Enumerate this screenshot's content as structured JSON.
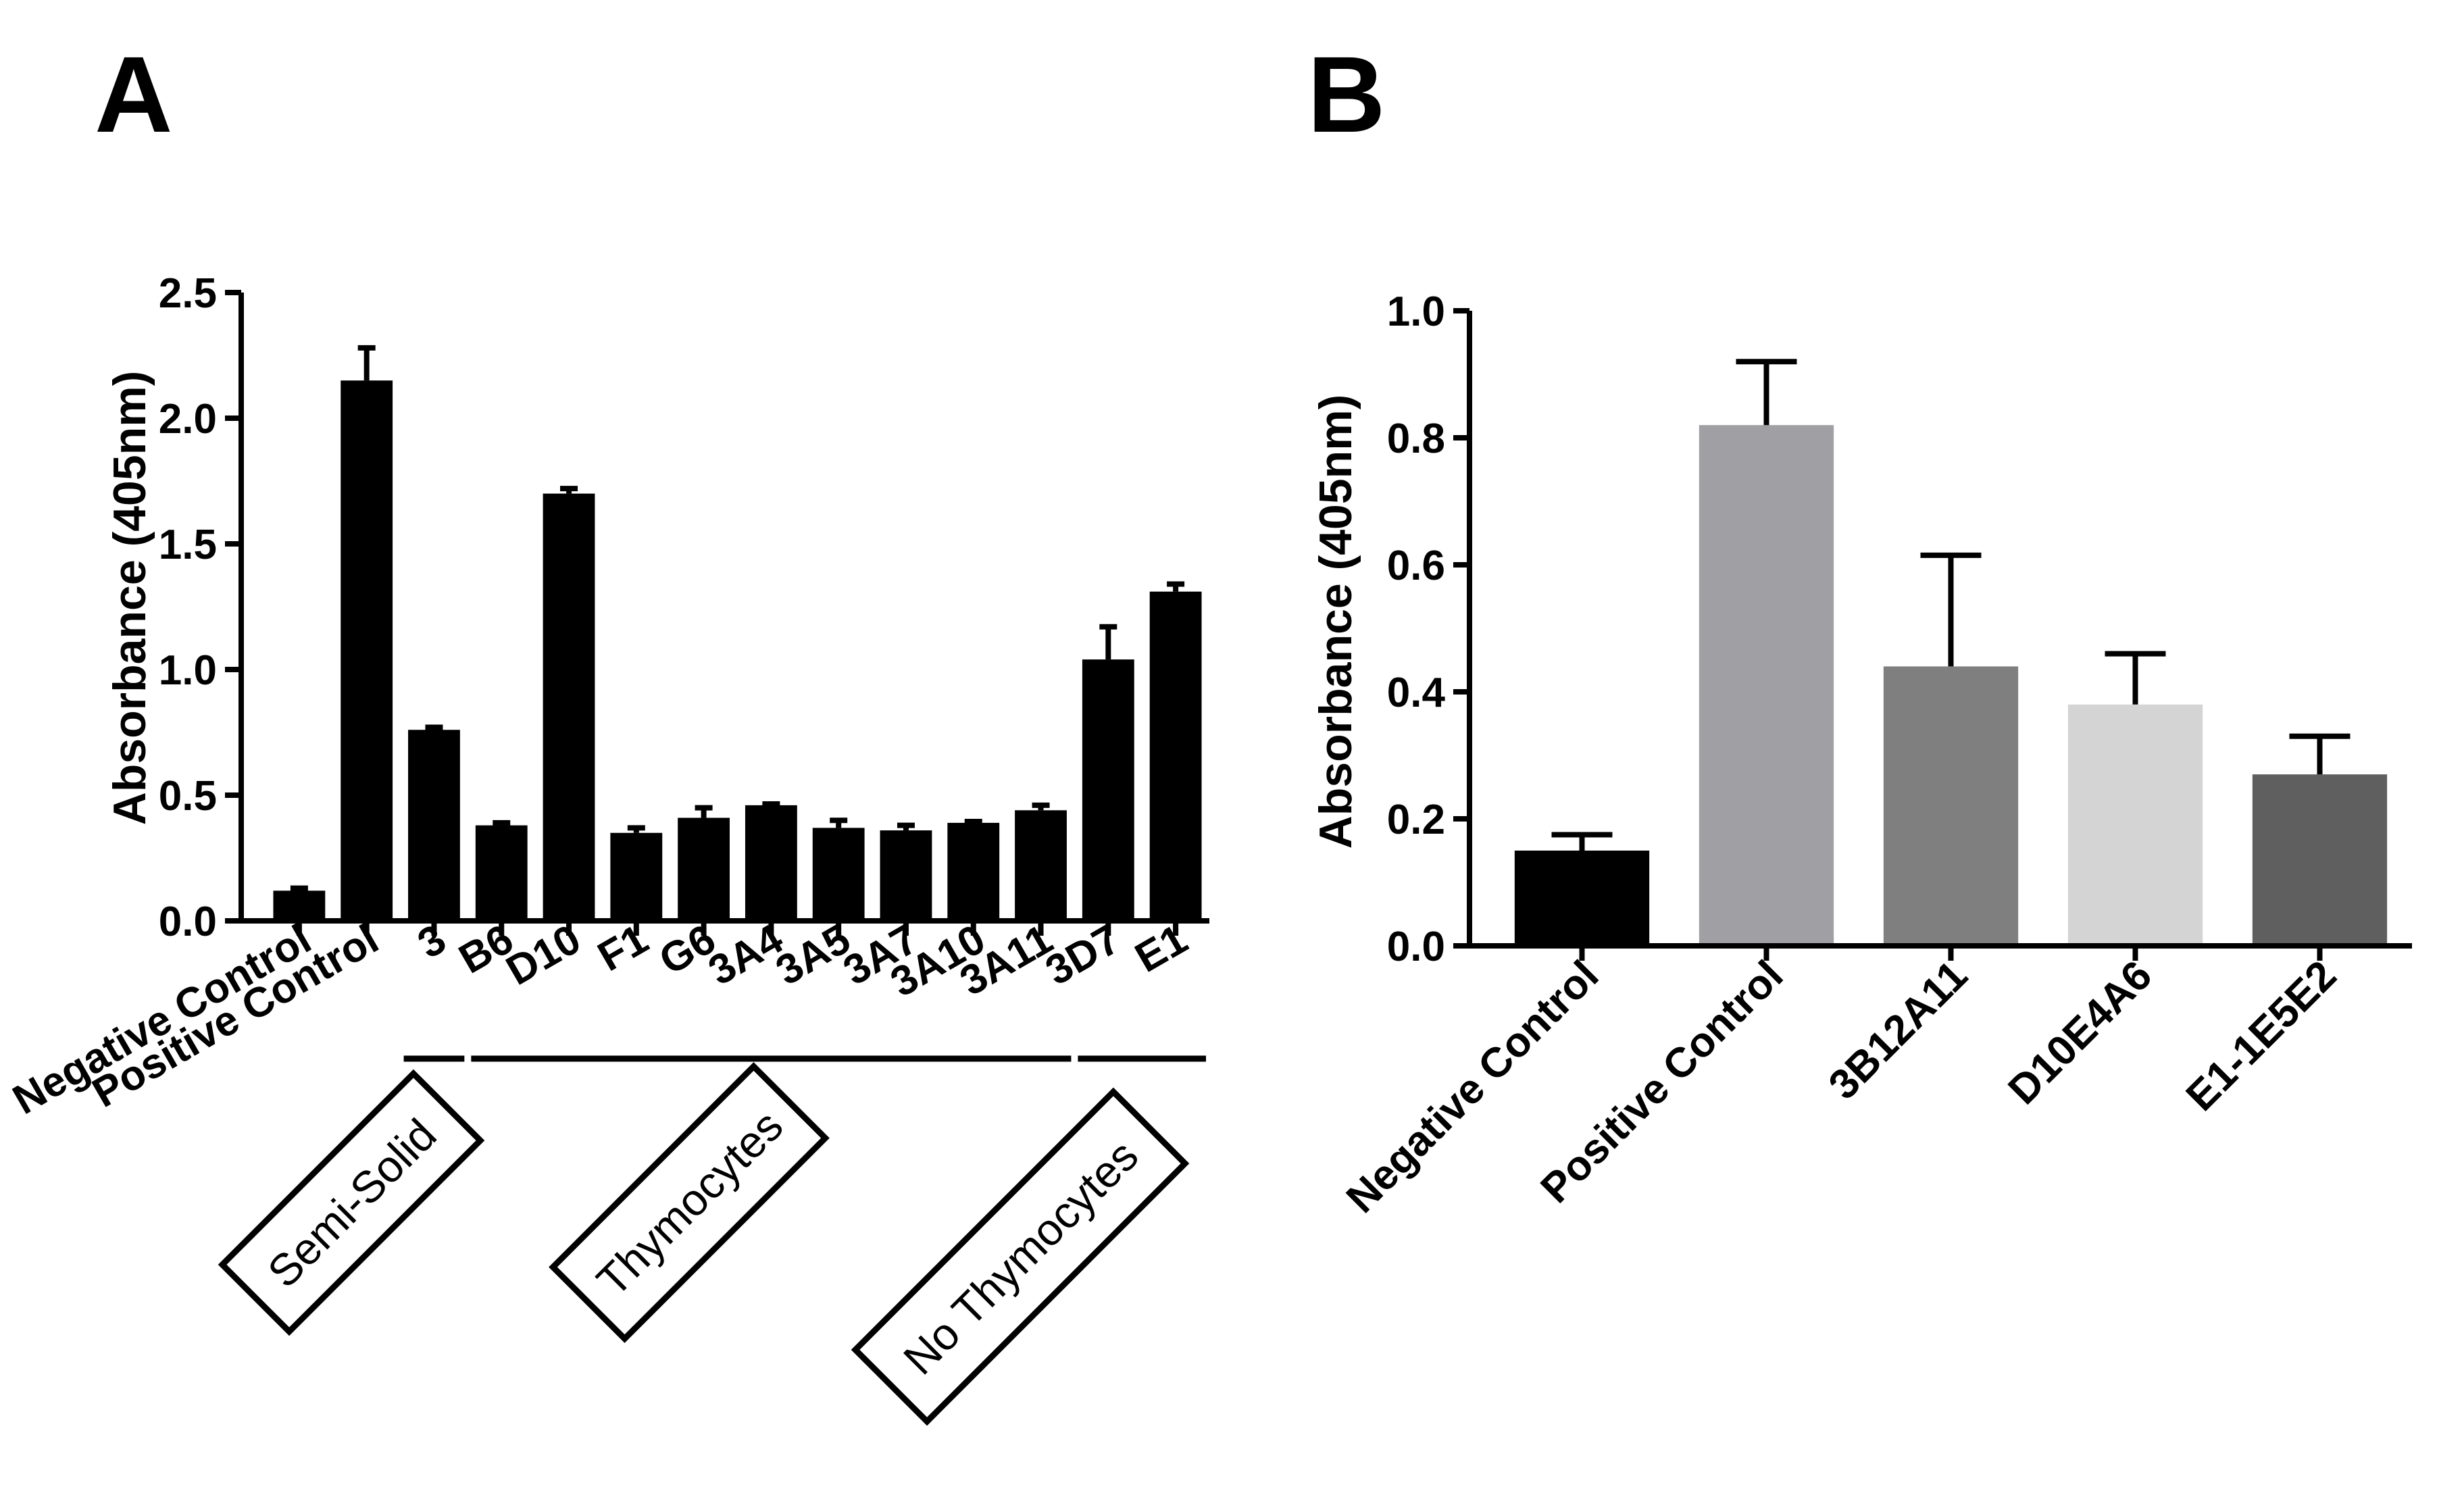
{
  "chart_data": [
    {
      "panel": "A",
      "type": "bar",
      "ylabel": "Absorbance (405nm)",
      "ylim": [
        0,
        2.5
      ],
      "yticks": [
        0.0,
        0.5,
        1.0,
        1.5,
        2.0,
        2.5
      ],
      "ytick_labels": [
        "0.0",
        "0.5",
        "1.0",
        "1.5",
        "2.0",
        "2.5"
      ],
      "bar_color": "#000000",
      "categories": [
        "Negative Control",
        "Positive Control",
        "3",
        "B6",
        "D10",
        "F1",
        "G6",
        "3A4",
        "3A5",
        "3A7",
        "3A10",
        "3A11",
        "3D7",
        "E1"
      ],
      "values": [
        0.12,
        2.15,
        0.76,
        0.38,
        1.7,
        0.35,
        0.41,
        0.46,
        0.37,
        0.36,
        0.39,
        0.44,
        1.04,
        1.31
      ],
      "errors": [
        0.01,
        0.13,
        0.01,
        0.01,
        0.02,
        0.02,
        0.04,
        0.005,
        0.03,
        0.02,
        0.005,
        0.02,
        0.13,
        0.03
      ],
      "groups": [
        {
          "label": "Semi-Solid",
          "categories": [
            "3"
          ]
        },
        {
          "label": "Thymocytes",
          "categories": [
            "B6",
            "D10",
            "F1",
            "G6",
            "3A4",
            "3A5",
            "3A7",
            "3A10",
            "3A11"
          ]
        },
        {
          "label": "No Thymocytes",
          "categories": [
            "3D7",
            "E1"
          ]
        }
      ]
    },
    {
      "panel": "B",
      "type": "bar",
      "ylabel": "Absorbance (405nm)",
      "ylim": [
        0,
        1.0
      ],
      "yticks": [
        0.0,
        0.2,
        0.4,
        0.6,
        0.8,
        1.0
      ],
      "ytick_labels": [
        "0.0",
        "0.2",
        "0.4",
        "0.6",
        "0.8",
        "1.0"
      ],
      "categories": [
        "Negative Control",
        "Positive Control",
        "3B12A11",
        "D10E4A6",
        "E1-1E5E2"
      ],
      "values": [
        0.15,
        0.82,
        0.44,
        0.38,
        0.27
      ],
      "errors": [
        0.025,
        0.1,
        0.175,
        0.08,
        0.06
      ],
      "colors": [
        "#000000",
        "#a0a0a4",
        "#7f7f7f",
        "#d4d4d4",
        "#5f5f5f"
      ]
    }
  ]
}
